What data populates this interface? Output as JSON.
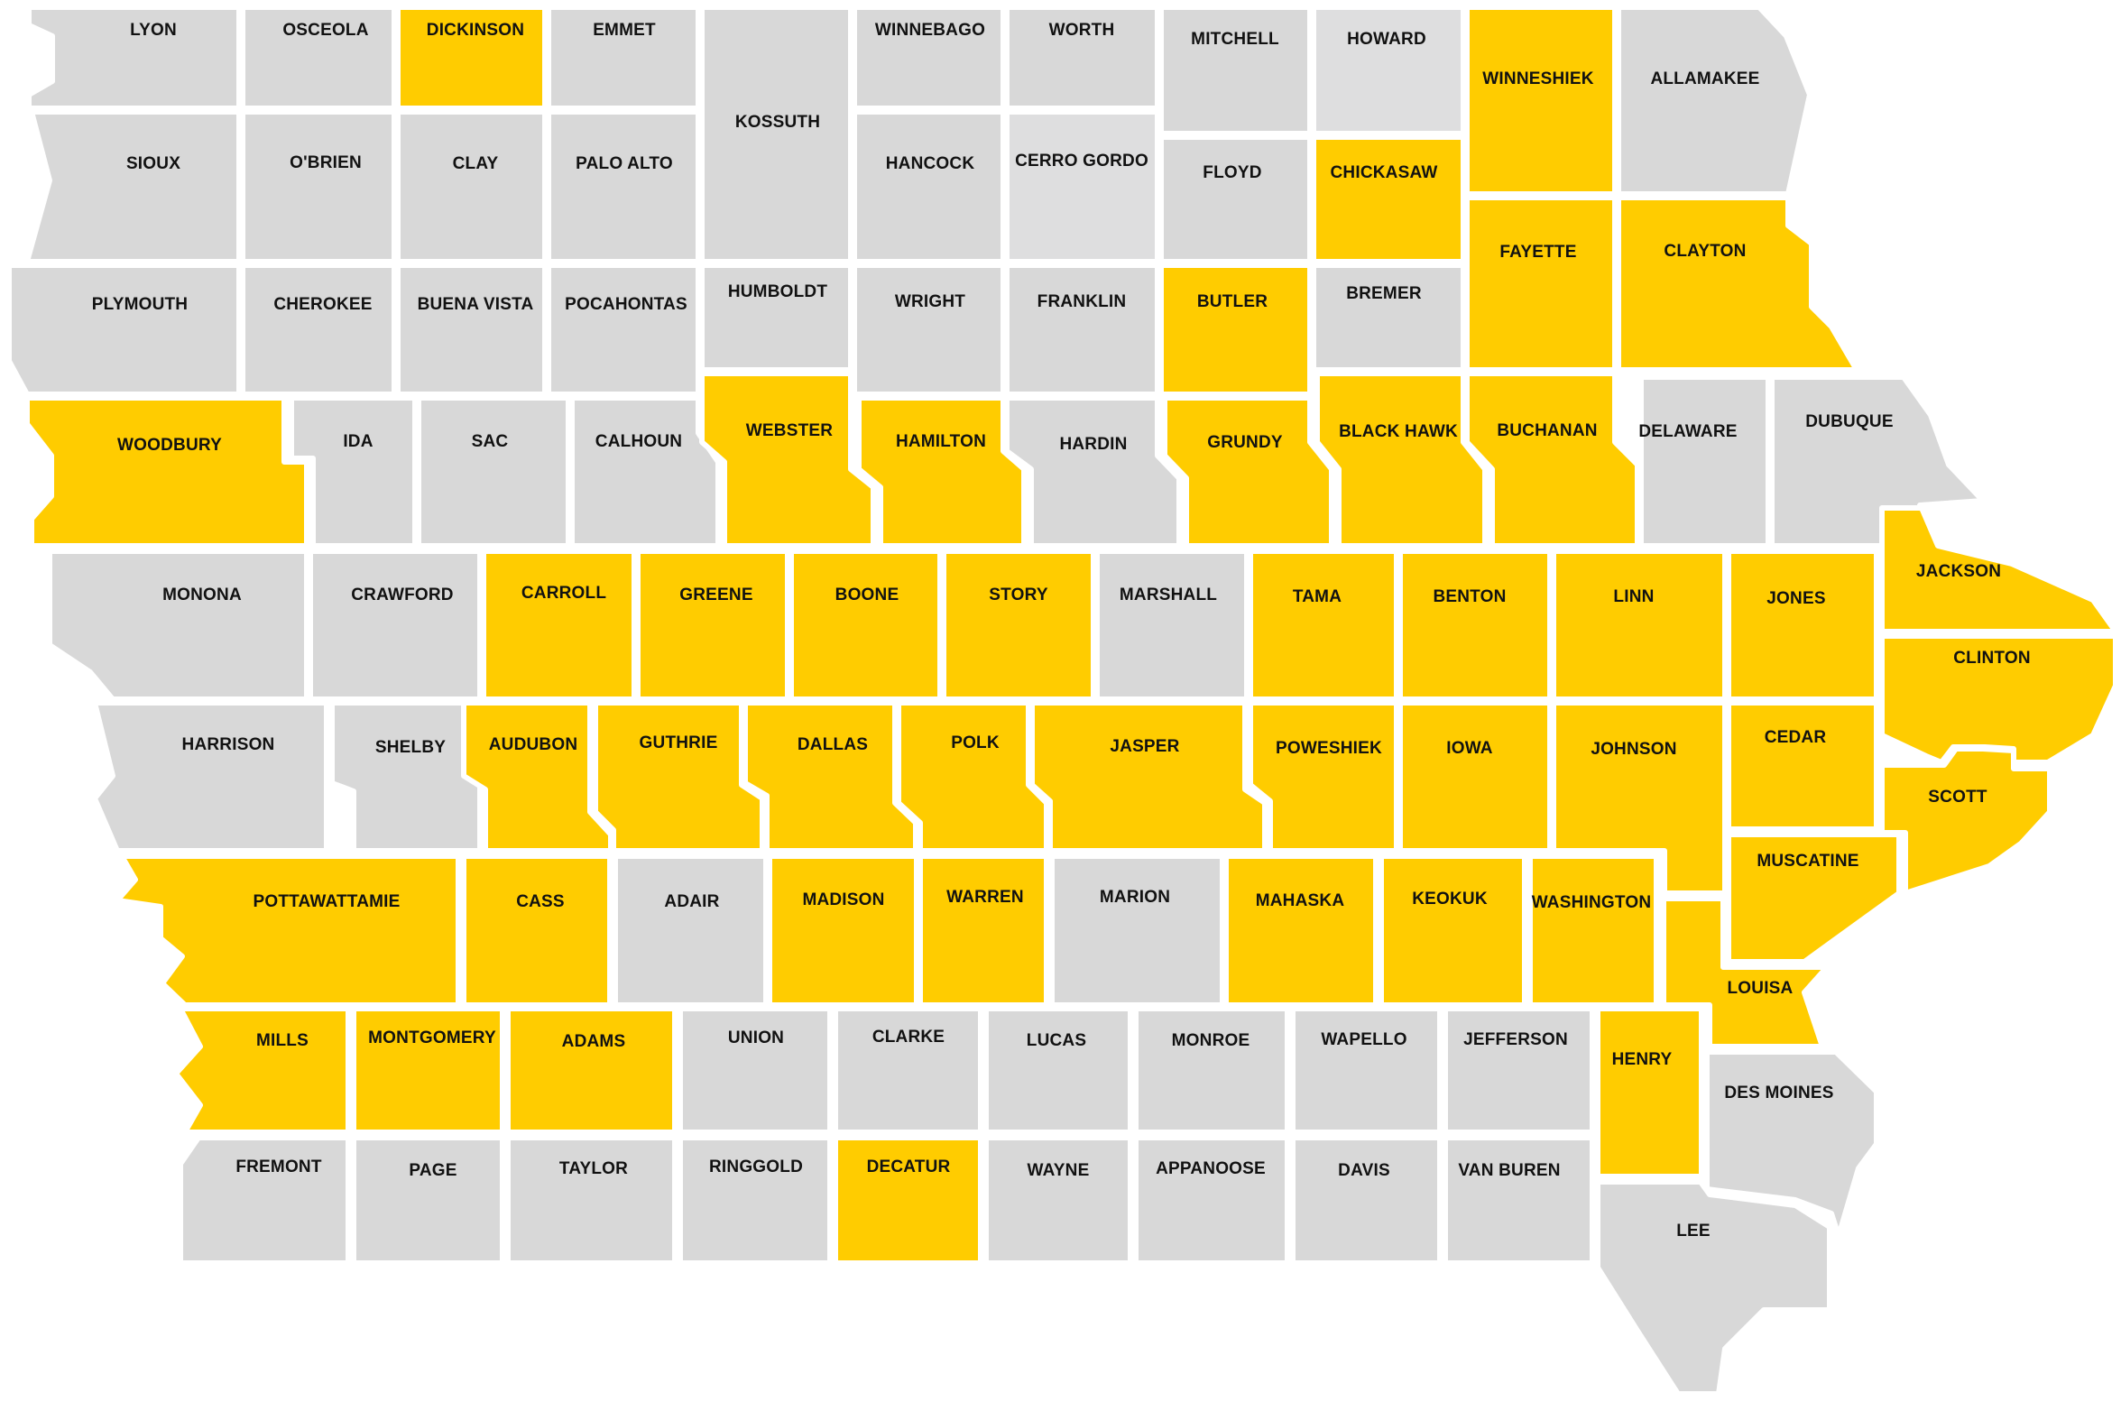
{
  "colors": {
    "highlighted": "#FFCC00",
    "not_highlighted": "#D8D8D8",
    "not_highlighted_light": "#DEDEDF",
    "border": "#FFFFFF",
    "label": "#111111"
  },
  "map": {
    "counties": [
      {
        "key": "lyon",
        "name": "LYON",
        "highlighted": false
      },
      {
        "key": "osceola",
        "name": "OSCEOLA",
        "highlighted": false
      },
      {
        "key": "dickinson",
        "name": "DICKINSON",
        "highlighted": true
      },
      {
        "key": "emmet",
        "name": "EMMET",
        "highlighted": false
      },
      {
        "key": "kossuth",
        "name": "KOSSUTH",
        "highlighted": false
      },
      {
        "key": "winnebago",
        "name": "WINNEBAGO",
        "highlighted": false
      },
      {
        "key": "worth",
        "name": "WORTH",
        "highlighted": false
      },
      {
        "key": "mitchell",
        "name": "MITCHELL",
        "highlighted": false
      },
      {
        "key": "howard",
        "name": "HOWARD",
        "highlighted": false
      },
      {
        "key": "winneshiek",
        "name": "WINNESHIEK",
        "highlighted": true
      },
      {
        "key": "allamakee",
        "name": "ALLAMAKEE",
        "highlighted": false
      },
      {
        "key": "sioux",
        "name": "SIOUX",
        "highlighted": false
      },
      {
        "key": "obrien",
        "name": "O'BRIEN",
        "highlighted": false
      },
      {
        "key": "clay",
        "name": "CLAY",
        "highlighted": false
      },
      {
        "key": "paloalto",
        "name": "PALO ALTO",
        "highlighted": false
      },
      {
        "key": "hancock",
        "name": "HANCOCK",
        "highlighted": false
      },
      {
        "key": "cerrogordo",
        "name": "CERRO GORDO",
        "highlighted": false
      },
      {
        "key": "floyd",
        "name": "FLOYD",
        "highlighted": false
      },
      {
        "key": "chickasaw",
        "name": "CHICKASAW",
        "highlighted": true
      },
      {
        "key": "fayette",
        "name": "FAYETTE",
        "highlighted": true
      },
      {
        "key": "clayton",
        "name": "CLAYTON",
        "highlighted": true
      },
      {
        "key": "plymouth",
        "name": "PLYMOUTH",
        "highlighted": false
      },
      {
        "key": "cherokee",
        "name": "CHEROKEE",
        "highlighted": false
      },
      {
        "key": "buenavista",
        "name": "BUENA VISTA",
        "highlighted": false
      },
      {
        "key": "pocahontas",
        "name": "POCAHONTAS",
        "highlighted": false
      },
      {
        "key": "humboldt",
        "name": "HUMBOLDT",
        "highlighted": false
      },
      {
        "key": "wright",
        "name": "WRIGHT",
        "highlighted": false
      },
      {
        "key": "franklin",
        "name": "FRANKLIN",
        "highlighted": false
      },
      {
        "key": "butler",
        "name": "BUTLER",
        "highlighted": true
      },
      {
        "key": "bremer",
        "name": "BREMER",
        "highlighted": false
      },
      {
        "key": "woodbury",
        "name": "WOODBURY",
        "highlighted": true
      },
      {
        "key": "ida",
        "name": "IDA",
        "highlighted": false
      },
      {
        "key": "sac",
        "name": "SAC",
        "highlighted": false
      },
      {
        "key": "calhoun",
        "name": "CALHOUN",
        "highlighted": false
      },
      {
        "key": "webster",
        "name": "WEBSTER",
        "highlighted": true
      },
      {
        "key": "hamilton",
        "name": "HAMILTON",
        "highlighted": true
      },
      {
        "key": "hardin",
        "name": "HARDIN",
        "highlighted": false
      },
      {
        "key": "grundy",
        "name": "GRUNDY",
        "highlighted": true
      },
      {
        "key": "blackhawk",
        "name": "BLACK HAWK",
        "highlighted": true
      },
      {
        "key": "buchanan",
        "name": "BUCHANAN",
        "highlighted": true
      },
      {
        "key": "delaware",
        "name": "DELAWARE",
        "highlighted": false
      },
      {
        "key": "dubuque",
        "name": "DUBUQUE",
        "highlighted": false
      },
      {
        "key": "monona",
        "name": "MONONA",
        "highlighted": false
      },
      {
        "key": "crawford",
        "name": "CRAWFORD",
        "highlighted": false
      },
      {
        "key": "carroll",
        "name": "CARROLL",
        "highlighted": true
      },
      {
        "key": "greene",
        "name": "GREENE",
        "highlighted": true
      },
      {
        "key": "boone",
        "name": "BOONE",
        "highlighted": true
      },
      {
        "key": "story",
        "name": "STORY",
        "highlighted": true
      },
      {
        "key": "marshall",
        "name": "MARSHALL",
        "highlighted": false
      },
      {
        "key": "tama",
        "name": "TAMA",
        "highlighted": true
      },
      {
        "key": "benton",
        "name": "BENTON",
        "highlighted": true
      },
      {
        "key": "linn",
        "name": "LINN",
        "highlighted": true
      },
      {
        "key": "jones",
        "name": "JONES",
        "highlighted": true
      },
      {
        "key": "jackson",
        "name": "JACKSON",
        "highlighted": true
      },
      {
        "key": "clinton",
        "name": "CLINTON",
        "highlighted": true
      },
      {
        "key": "harrison",
        "name": "HARRISON",
        "highlighted": false
      },
      {
        "key": "shelby",
        "name": "SHELBY",
        "highlighted": false
      },
      {
        "key": "audubon",
        "name": "AUDUBON",
        "highlighted": true
      },
      {
        "key": "guthrie",
        "name": "GUTHRIE",
        "highlighted": true
      },
      {
        "key": "dallas",
        "name": "DALLAS",
        "highlighted": true
      },
      {
        "key": "polk",
        "name": "POLK",
        "highlighted": true
      },
      {
        "key": "jasper",
        "name": "JASPER",
        "highlighted": true
      },
      {
        "key": "poweshiek",
        "name": "POWESHIEK",
        "highlighted": true
      },
      {
        "key": "iowa",
        "name": "IOWA",
        "highlighted": true
      },
      {
        "key": "johnson",
        "name": "JOHNSON",
        "highlighted": true
      },
      {
        "key": "cedar",
        "name": "CEDAR",
        "highlighted": true
      },
      {
        "key": "scott",
        "name": "SCOTT",
        "highlighted": true
      },
      {
        "key": "pottawattamie",
        "name": "POTTAWATTAMIE",
        "highlighted": true
      },
      {
        "key": "cass",
        "name": "CASS",
        "highlighted": true
      },
      {
        "key": "adair",
        "name": "ADAIR",
        "highlighted": false
      },
      {
        "key": "madison",
        "name": "MADISON",
        "highlighted": true
      },
      {
        "key": "warren",
        "name": "WARREN",
        "highlighted": true
      },
      {
        "key": "marion",
        "name": "MARION",
        "highlighted": false
      },
      {
        "key": "mahaska",
        "name": "MAHASKA",
        "highlighted": true
      },
      {
        "key": "keokuk",
        "name": "KEOKUK",
        "highlighted": true
      },
      {
        "key": "washington",
        "name": "WASHINGTON",
        "highlighted": true
      },
      {
        "key": "muscatine",
        "name": "MUSCATINE",
        "highlighted": true
      },
      {
        "key": "louisa",
        "name": "LOUISA",
        "highlighted": true
      },
      {
        "key": "mills",
        "name": "MILLS",
        "highlighted": true
      },
      {
        "key": "montgomery",
        "name": "MONTGOMERY",
        "highlighted": true
      },
      {
        "key": "adams",
        "name": "ADAMS",
        "highlighted": true
      },
      {
        "key": "union",
        "name": "UNION",
        "highlighted": false
      },
      {
        "key": "clarke",
        "name": "CLARKE",
        "highlighted": false
      },
      {
        "key": "lucas",
        "name": "LUCAS",
        "highlighted": false
      },
      {
        "key": "monroe",
        "name": "MONROE",
        "highlighted": false
      },
      {
        "key": "wapello",
        "name": "WAPELLO",
        "highlighted": false
      },
      {
        "key": "jefferson",
        "name": "JEFFERSON",
        "highlighted": false
      },
      {
        "key": "henry",
        "name": "HENRY",
        "highlighted": true
      },
      {
        "key": "desmoines",
        "name": "DES MOINES",
        "highlighted": false
      },
      {
        "key": "fremont",
        "name": "FREMONT",
        "highlighted": false
      },
      {
        "key": "page",
        "name": "PAGE",
        "highlighted": false
      },
      {
        "key": "taylor",
        "name": "TAYLOR",
        "highlighted": false
      },
      {
        "key": "ringgold",
        "name": "RINGGOLD",
        "highlighted": false
      },
      {
        "key": "decatur",
        "name": "DECATUR",
        "highlighted": true
      },
      {
        "key": "wayne",
        "name": "WAYNE",
        "highlighted": false
      },
      {
        "key": "appanoose",
        "name": "APPANOOSE",
        "highlighted": false
      },
      {
        "key": "davis",
        "name": "DAVIS",
        "highlighted": false
      },
      {
        "key": "vanburen",
        "name": "VAN BUREN",
        "highlighted": false
      },
      {
        "key": "lee",
        "name": "LEE",
        "highlighted": false
      }
    ]
  }
}
